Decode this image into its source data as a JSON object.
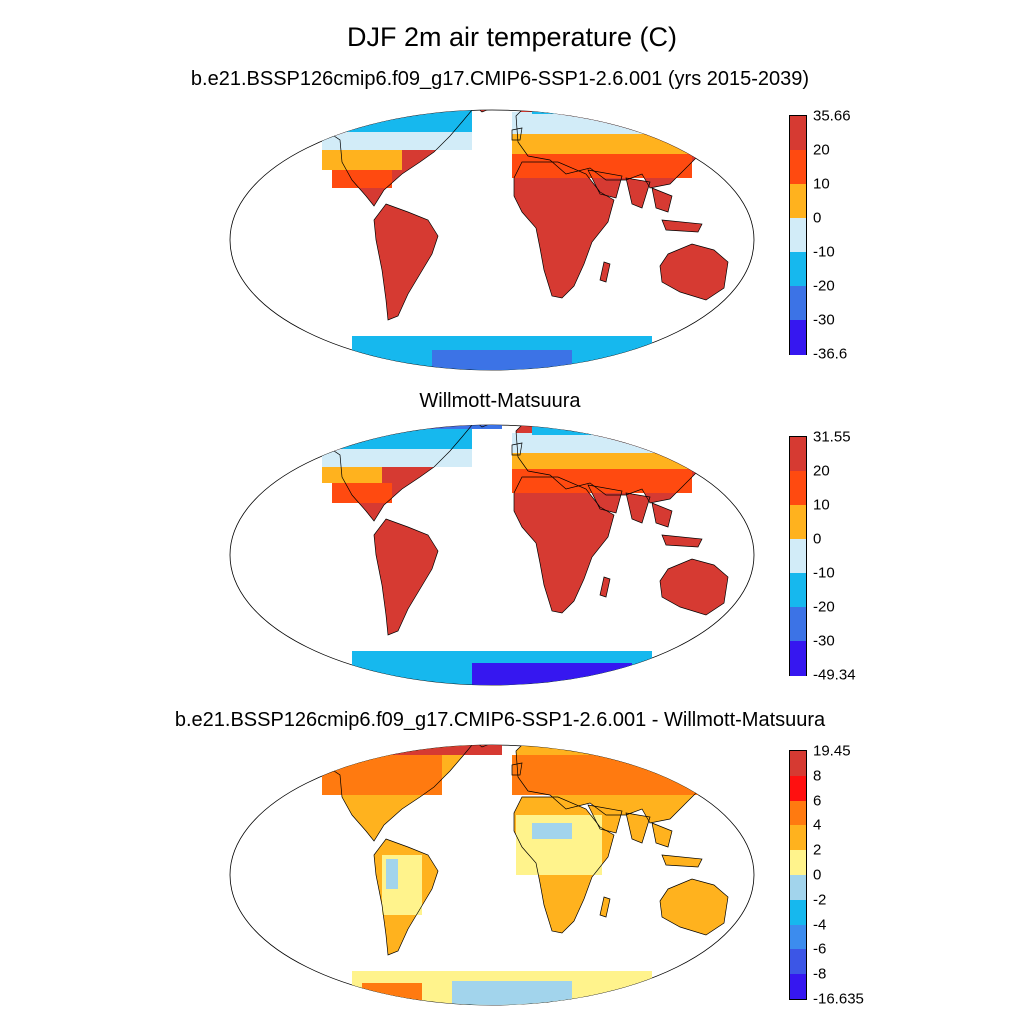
{
  "title": "DJF 2m air temperature (C)",
  "panels": [
    {
      "subtitle": "b.e21.BSSP126cmip6.f09_g17.CMIP6-SSP1-2.6.001 (yrs 2015-2039)",
      "colorbar": {
        "labels": [
          "35.66",
          "20",
          "10",
          "0",
          "-10",
          "-20",
          "-30",
          "-36.6"
        ],
        "colors": [
          "#d63a32",
          "#ff4a10",
          "#ffb21e",
          "#d2ecf8",
          "#16b8ee",
          "#3c73e6",
          "#3617f0"
        ]
      }
    },
    {
      "subtitle": "Willmott-Matsuura",
      "colorbar": {
        "labels": [
          "31.55",
          "20",
          "10",
          "0",
          "-10",
          "-20",
          "-30",
          "-49.34"
        ],
        "colors": [
          "#d63a32",
          "#ff4a10",
          "#ffb21e",
          "#d2ecf8",
          "#16b8ee",
          "#3c73e6",
          "#3617f0"
        ]
      }
    },
    {
      "subtitle": "b.e21.BSSP126cmip6.f09_g17.CMIP6-SSP1-2.6.001 - Willmott-Matsuura",
      "colorbar": {
        "labels": [
          "19.45",
          "8",
          "6",
          "4",
          "2",
          "0",
          "-2",
          "-4",
          "-6",
          "-8",
          "-16.635"
        ],
        "colors": [
          "#d63a32",
          "#ff1010",
          "#ff7a10",
          "#ffb21e",
          "#fff38c",
          "#a2d4ec",
          "#16b8ee",
          "#3c8cee",
          "#3c56e6",
          "#3617f0"
        ]
      }
    }
  ]
}
